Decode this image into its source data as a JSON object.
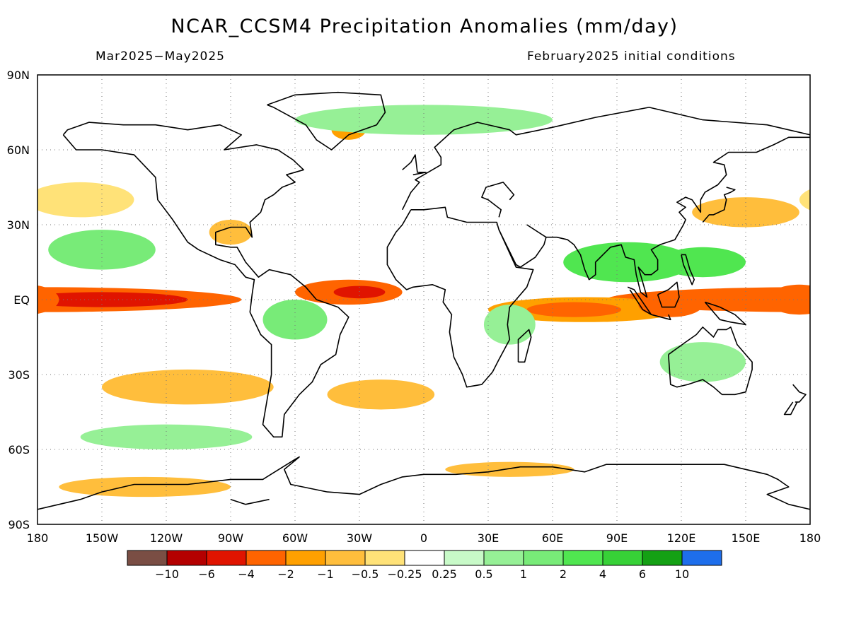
{
  "title": "NCAR_CCSM4 Precipitation Anomalies (mm/day)",
  "period": "Mar2025−May2025",
  "initial_conditions": "February2025 initial conditions",
  "lat_labels": [
    "90N",
    "60N",
    "30N",
    "EQ",
    "30S",
    "60S",
    "90S"
  ],
  "lon_labels": [
    "180",
    "150W",
    "120W",
    "90W",
    "60W",
    "30W",
    "0",
    "30E",
    "60E",
    "90E",
    "120E",
    "150E",
    "180"
  ],
  "colorbar": {
    "colors": [
      "#7a4e44",
      "#b40000",
      "#e01400",
      "#ff6400",
      "#ffa000",
      "#ffbe3c",
      "#ffe278",
      "#ffffff",
      "#c8fac8",
      "#96f096",
      "#78eb78",
      "#50e650",
      "#37d137",
      "#14a014",
      "#1e6eeb"
    ],
    "labels": [
      "−10",
      "−6",
      "−4",
      "−2",
      "−1",
      "−0.5",
      "−0.25",
      "0.25",
      "0.5",
      "1",
      "2",
      "4",
      "6",
      "10"
    ]
  },
  "anomaly_regions": [
    {
      "lon": -180,
      "lat": 0,
      "rx": 95,
      "ry": 5,
      "level": -4
    },
    {
      "lon": -150,
      "lat": 0,
      "rx": 40,
      "ry": 3,
      "level": -6
    },
    {
      "lon": -35,
      "lat": 3,
      "rx": 25,
      "ry": 5,
      "level": -4
    },
    {
      "lon": -30,
      "lat": 3,
      "rx": 12,
      "ry": 2.5,
      "level": -6
    },
    {
      "lon": 75,
      "lat": -4,
      "rx": 45,
      "ry": 5,
      "level": -2
    },
    {
      "lon": 70,
      "lat": -4,
      "rx": 22,
      "ry": 3,
      "level": -4
    },
    {
      "lon": 115,
      "lat": -2,
      "rx": 15,
      "ry": 5,
      "level": -4
    },
    {
      "lon": 175,
      "lat": 0,
      "rx": 15,
      "ry": 6,
      "level": -4
    },
    {
      "lon": -110,
      "lat": -35,
      "rx": 40,
      "ry": 7,
      "level": -1
    },
    {
      "lon": -20,
      "lat": -38,
      "rx": 25,
      "ry": 6,
      "level": -1
    },
    {
      "lon": 150,
      "lat": 35,
      "rx": 25,
      "ry": 6,
      "level": -1
    },
    {
      "lon": -160,
      "lat": 40,
      "rx": 25,
      "ry": 7,
      "level": -0.5
    },
    {
      "lon": -90,
      "lat": 27,
      "rx": 10,
      "ry": 5,
      "level": -1
    },
    {
      "lon": -130,
      "lat": -75,
      "rx": 40,
      "ry": 4,
      "level": -1
    },
    {
      "lon": 40,
      "lat": -68,
      "rx": 30,
      "ry": 3,
      "level": -1
    },
    {
      "lon": -35,
      "lat": 68,
      "rx": 8,
      "ry": 4,
      "level": -2
    },
    {
      "lon": -150,
      "lat": 20,
      "rx": 25,
      "ry": 8,
      "level": 1
    },
    {
      "lon": 95,
      "lat": 15,
      "rx": 30,
      "ry": 8,
      "level": 2
    },
    {
      "lon": 130,
      "lat": 15,
      "rx": 20,
      "ry": 6,
      "level": 2
    },
    {
      "lon": -60,
      "lat": -8,
      "rx": 15,
      "ry": 8,
      "level": 1
    },
    {
      "lon": 130,
      "lat": -25,
      "rx": 20,
      "ry": 8,
      "level": 0.5
    },
    {
      "lon": 40,
      "lat": -10,
      "rx": 12,
      "ry": 8,
      "level": 0.5
    },
    {
      "lon": -120,
      "lat": -55,
      "rx": 40,
      "ry": 5,
      "level": 0.5
    },
    {
      "lon": 0,
      "lat": 72,
      "rx": 60,
      "ry": 6,
      "level": 0.5
    }
  ]
}
